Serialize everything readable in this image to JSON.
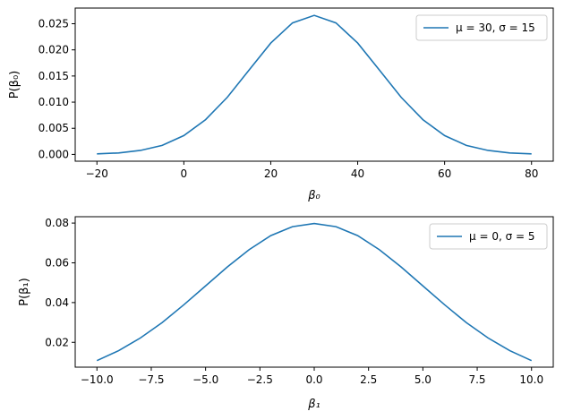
{
  "chart_data": [
    {
      "type": "line",
      "ylabel": "P(β₀)",
      "xlabel": "β₀",
      "xlim": [
        -25,
        85
      ],
      "ylim": [
        -0.0013,
        0.028
      ],
      "xticks": [
        -20,
        0,
        20,
        40,
        60,
        80
      ],
      "xtick_labels": [
        "−20",
        "0",
        "20",
        "40",
        "60",
        "80"
      ],
      "yticks": [
        0.0,
        0.005,
        0.01,
        0.015,
        0.02,
        0.025
      ],
      "ytick_labels": [
        "0.000",
        "0.005",
        "0.010",
        "0.015",
        "0.020",
        "0.025"
      ],
      "legend_position": "top-right",
      "grid": false,
      "series": [
        {
          "name": "μ = 30, σ = 15",
          "color": "#1f77b4",
          "x": [
            -20,
            -15,
            -10,
            -5,
            0,
            5,
            10,
            15,
            20,
            25,
            30,
            35,
            40,
            45,
            50,
            55,
            60,
            65,
            70,
            75,
            80
          ],
          "values": [
            0.0001,
            0.00028,
            0.00076,
            0.00172,
            0.0036,
            0.00665,
            0.01093,
            0.01613,
            0.0213,
            0.02516,
            0.0266,
            0.02516,
            0.0213,
            0.01613,
            0.01093,
            0.00665,
            0.0036,
            0.00172,
            0.00076,
            0.00028,
            0.0001
          ]
        }
      ]
    },
    {
      "type": "line",
      "ylabel": "P(β₁)",
      "xlabel": "β₁",
      "xlim": [
        -11,
        11
      ],
      "ylim": [
        0.0075,
        0.0832
      ],
      "xticks": [
        -10,
        -7.5,
        -5,
        -2.5,
        0,
        2.5,
        5,
        7.5,
        10
      ],
      "xtick_labels": [
        "−10.0",
        "−7.5",
        "−5.0",
        "−2.5",
        "0.0",
        "2.5",
        "5.0",
        "7.5",
        "10.0"
      ],
      "yticks": [
        0.02,
        0.04,
        0.06,
        0.08
      ],
      "ytick_labels": [
        "0.02",
        "0.04",
        "0.06",
        "0.08"
      ],
      "legend_position": "top-right",
      "grid": false,
      "series": [
        {
          "name": "μ = 0, σ = 5",
          "color": "#1f77b4",
          "x": [
            -10,
            -9,
            -8,
            -7,
            -6,
            -5,
            -4,
            -3,
            -2,
            -1,
            0,
            1,
            2,
            3,
            4,
            5,
            6,
            7,
            8,
            9,
            10
          ],
          "values": [
            0.0108,
            0.0158,
            0.0222,
            0.0299,
            0.0389,
            0.0484,
            0.0579,
            0.0666,
            0.0737,
            0.0782,
            0.0798,
            0.0782,
            0.0737,
            0.0666,
            0.0579,
            0.0484,
            0.0389,
            0.0299,
            0.0222,
            0.0158,
            0.0108
          ]
        }
      ]
    }
  ]
}
